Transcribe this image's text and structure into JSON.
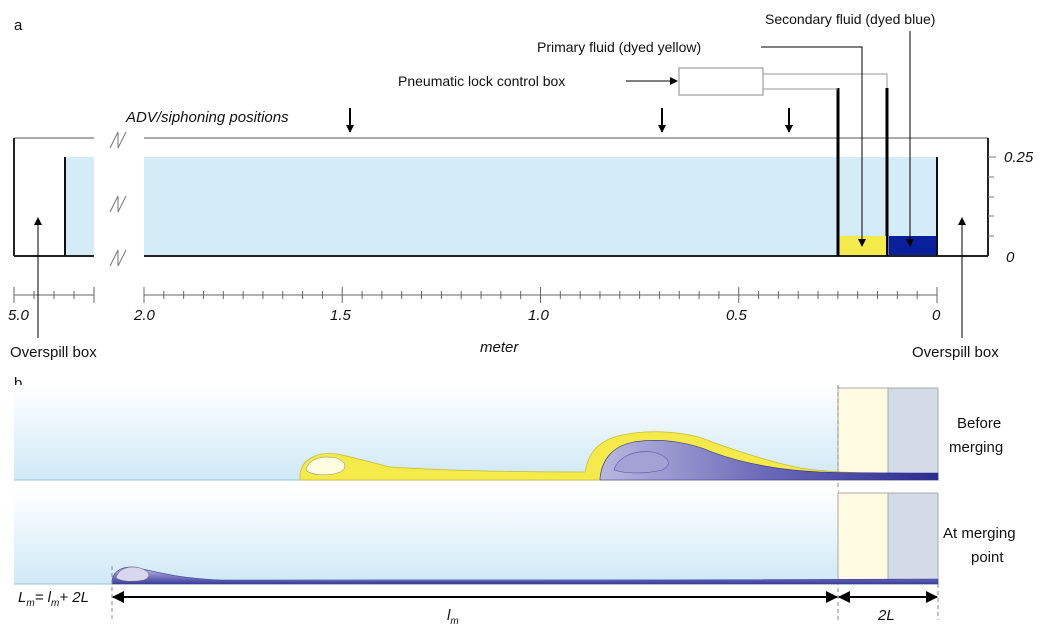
{
  "panel_a": {
    "label": "a",
    "adv_label": "ADV/siphoning positions",
    "primary_fluid": "Primary fluid (dyed yellow)",
    "secondary_fluid": "Secondary fluid (dyed blue)",
    "control_box": "Pneumatic lock control box",
    "overspill_left": "Overspill box",
    "overspill_right": "Overspill box",
    "axis_title": "meter",
    "x_ticks": [
      "5.0",
      "2.0",
      "1.5",
      "1.0",
      "0.5",
      "0"
    ],
    "y_ticks": [
      "0.25",
      "0"
    ]
  },
  "panel_b": {
    "label": "b",
    "before_line1": "Before",
    "before_line2": "merging",
    "at_line1": "At merging",
    "at_line2": "point",
    "eq_lhs": "L",
    "eq_lhs_sub": "m",
    "eq_mid": "= l",
    "eq_mid_sub": "m",
    "eq_rhs": "+ 2L",
    "lm": "l",
    "lm_sub": "m",
    "twoL": "2L"
  },
  "colors": {
    "water": "#d4ecf8",
    "yellow": "#f4ea4a",
    "blue": "#0a1f9c",
    "current": "#35379a",
    "lock_yellow": "#fffbe2",
    "lock_blue": "#d3dbe8"
  }
}
